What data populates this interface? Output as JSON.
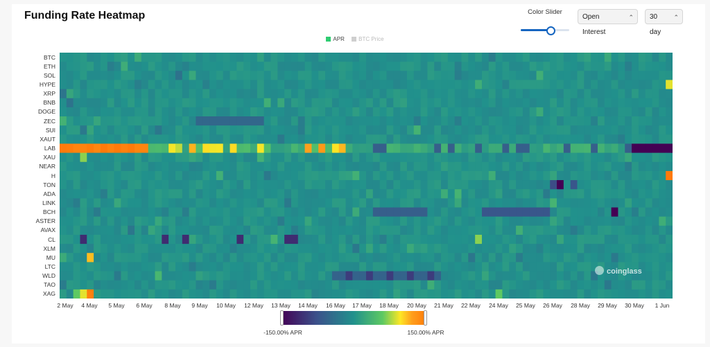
{
  "page": {
    "title": "Funding Rate Heatmap"
  },
  "controls": {
    "slider_label": "Color Slider",
    "slider_value": 0.62,
    "metric_select": "Open Interest",
    "range_select": "30 day"
  },
  "legend": [
    {
      "label": "APR",
      "color": "#2ecc71",
      "active": true
    },
    {
      "label": "BTC Price",
      "color": "#cfcfcf",
      "active": false
    }
  ],
  "colorbar": {
    "min_label": "-150.00% APR",
    "max_label": "150.00% APR"
  },
  "watermark": "coinglass",
  "chart_data": {
    "type": "heatmap",
    "title": "Funding Rate Heatmap",
    "value_unit": "% APR",
    "color_range": [
      -150,
      150
    ],
    "rows": [
      "BTC",
      "ETH",
      "SOL",
      "HYPE",
      "XRP",
      "BNB",
      "DOGE",
      "ZEC",
      "SUI",
      "XAUT",
      "LAB",
      "XAU",
      "NEAR",
      "H",
      "TON",
      "ADA",
      "LINK",
      "BCH",
      "ASTER",
      "AVAX",
      "CL",
      "XLM",
      "MU",
      "LTC",
      "WLD",
      "TAO",
      "XAG"
    ],
    "x_ticks": [
      "2 May",
      "4 May",
      "5 May",
      "6 May",
      "8 May",
      "9 May",
      "10 May",
      "12 May",
      "13 May",
      "14 May",
      "16 May",
      "17 May",
      "18 May",
      "20 May",
      "21 May",
      "22 May",
      "24 May",
      "25 May",
      "26 May",
      "28 May",
      "29 May",
      "30 May",
      "1 Jun"
    ],
    "columns": 90,
    "approx_values": {
      "LAB": {
        "2 May–6 May": 150,
        "12 May–14 May": 100,
        "30 May–1 Jun": -150
      },
      "H": {
        "1 Jun": 150
      },
      "XAG": {
        "4 May": 150
      },
      "CL": {
        "4 May": -120,
        "12 May–13 May": -110
      },
      "TON": {
        "26 May": -150
      }
    }
  }
}
